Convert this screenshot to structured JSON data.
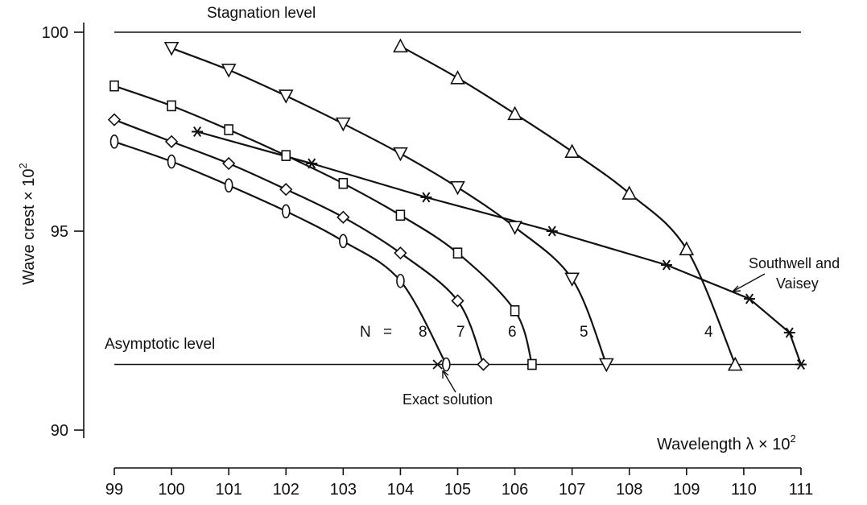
{
  "chart_data": {
    "type": "line",
    "xlabel": "Wavelength λ × 10",
    "xlabel_sup": "2",
    "ylabel": "Wave crest × 10",
    "ylabel_sup": "2",
    "xlim": [
      99,
      111
    ],
    "ylim": [
      90,
      100
    ],
    "x_ticks": [
      "99",
      "100",
      "101",
      "102",
      "103",
      "104",
      "105",
      "106",
      "107",
      "108",
      "109",
      "110",
      "111"
    ],
    "y_ticks": [
      "90",
      "95",
      "100"
    ],
    "grid": false,
    "reference_lines": [
      {
        "label": "Stagnation level",
        "y": 100
      },
      {
        "label": "Asymptotic level",
        "y": 91.65
      }
    ],
    "n_label": "N",
    "n_equals": "=",
    "series": [
      {
        "name": "8",
        "marker": "ellipse",
        "x": [
          99,
          100,
          101,
          102,
          103,
          104,
          104.8
        ],
        "y": [
          97.25,
          96.75,
          96.15,
          95.5,
          94.75,
          93.75,
          91.65
        ]
      },
      {
        "name": "7",
        "marker": "diamond",
        "x": [
          99,
          100,
          101,
          102,
          103,
          104,
          105,
          105.45
        ],
        "y": [
          97.8,
          97.25,
          96.7,
          96.05,
          95.35,
          94.45,
          93.25,
          91.65
        ]
      },
      {
        "name": "6",
        "marker": "square",
        "x": [
          99,
          100,
          101,
          102,
          103,
          104,
          105,
          106,
          106.3
        ],
        "y": [
          98.65,
          98.15,
          97.55,
          96.9,
          96.2,
          95.4,
          94.45,
          93.0,
          91.65
        ]
      },
      {
        "name": "5",
        "marker": "triangle-down",
        "x": [
          100,
          101,
          102,
          103,
          104,
          105,
          106,
          107,
          107.6
        ],
        "y": [
          99.6,
          99.05,
          98.4,
          97.7,
          96.95,
          96.1,
          95.1,
          93.8,
          91.65
        ]
      },
      {
        "name": "4",
        "marker": "triangle-up",
        "x": [
          104,
          105,
          106,
          107,
          108,
          109,
          109.85
        ],
        "y": [
          99.65,
          98.85,
          97.95,
          97.0,
          95.95,
          94.55,
          91.65
        ]
      },
      {
        "name": "Southwell and Vaisey",
        "marker": "star",
        "x": [
          100.45,
          102.45,
          104.45,
          106.65,
          108.65,
          110.1,
          110.8,
          111
        ],
        "y": [
          97.5,
          96.7,
          95.85,
          95.0,
          94.15,
          93.3,
          92.45,
          91.65
        ]
      }
    ],
    "exact_solution": {
      "label": "Exact solution",
      "x": 104.65,
      "y": 91.65
    },
    "annotations": {
      "southwell_line1": "Southwell and",
      "southwell_line2": "Vaisey"
    }
  }
}
